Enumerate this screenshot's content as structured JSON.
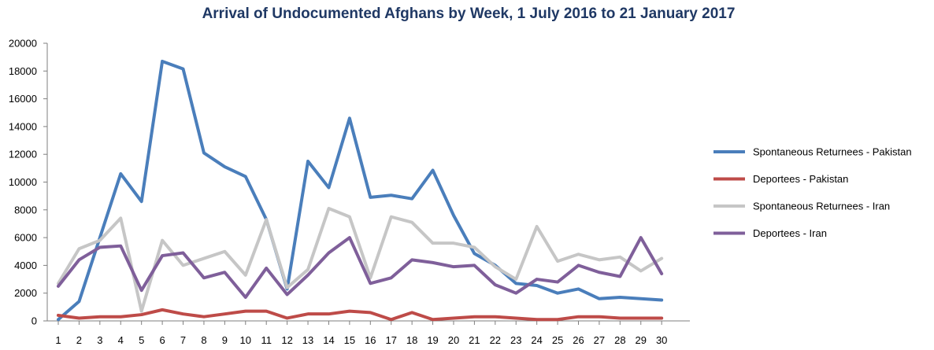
{
  "chart_data": {
    "type": "line",
    "title": "Arrival of Undocumented Afghans by Week, 1 July 2016 to 21 January 2017",
    "xlabel": "",
    "ylabel": "",
    "x": [
      1,
      2,
      3,
      4,
      5,
      6,
      7,
      8,
      9,
      10,
      11,
      12,
      13,
      14,
      15,
      16,
      17,
      18,
      19,
      20,
      21,
      22,
      23,
      24,
      25,
      26,
      27,
      28,
      29,
      30
    ],
    "x_tick_labels": [
      "1",
      "2",
      "3",
      "4",
      "5",
      "6",
      "7",
      "8",
      "9",
      "10",
      "11",
      "12",
      "13",
      "14",
      "15",
      "16",
      "17",
      "18",
      "19",
      "20",
      "21",
      "22",
      "23",
      "24",
      "25",
      "26",
      "27",
      "28",
      "29",
      "30"
    ],
    "ylim": [
      0,
      20000
    ],
    "y_ticks": [
      0,
      2000,
      4000,
      6000,
      8000,
      10000,
      12000,
      14000,
      16000,
      18000,
      20000
    ],
    "y_tick_labels": [
      "0",
      "2000",
      "4000",
      "6000",
      "8000",
      "10000",
      "12000",
      "14000",
      "16000",
      "18000",
      "20000"
    ],
    "grid": false,
    "legend_position": "right",
    "series": [
      {
        "name": "Spontaneous Returnees - Pakistan",
        "color": "#4a7ebb",
        "values": [
          100,
          1400,
          6000,
          10600,
          8600,
          18700,
          18150,
          12100,
          11100,
          10400,
          7300,
          2300,
          11500,
          9600,
          14600,
          8900,
          9050,
          8800,
          10850,
          7600,
          4850,
          4000,
          2700,
          2550,
          2000,
          2300,
          1600,
          1700,
          1600,
          1500
        ]
      },
      {
        "name": "Deportees - Pakistan",
        "color": "#be4b48",
        "values": [
          400,
          200,
          300,
          300,
          450,
          800,
          500,
          300,
          500,
          700,
          700,
          200,
          500,
          500,
          700,
          600,
          100,
          600,
          100,
          200,
          300,
          300,
          200,
          100,
          100,
          300,
          300,
          200,
          200,
          200
        ]
      },
      {
        "name": "Spontaneous Returnees - Iran",
        "color": "#c6c6c6",
        "values": [
          2700,
          5200,
          5800,
          7400,
          700,
          5800,
          4000,
          4500,
          5000,
          3300,
          7300,
          2400,
          3700,
          8100,
          7500,
          3100,
          7500,
          7100,
          5600,
          5600,
          5300,
          3900,
          3000,
          6800,
          4300,
          4800,
          4400,
          4600,
          3600,
          4500
        ]
      },
      {
        "name": "Deportees - Iran",
        "color": "#7f5f9a",
        "values": [
          2500,
          4400,
          5300,
          5400,
          2200,
          4700,
          4900,
          3100,
          3500,
          1700,
          3800,
          1900,
          3300,
          4900,
          6000,
          2700,
          3100,
          4400,
          4200,
          3900,
          4000,
          2600,
          2000,
          3000,
          2800,
          4000,
          3500,
          3200,
          6000,
          3400
        ]
      }
    ]
  }
}
